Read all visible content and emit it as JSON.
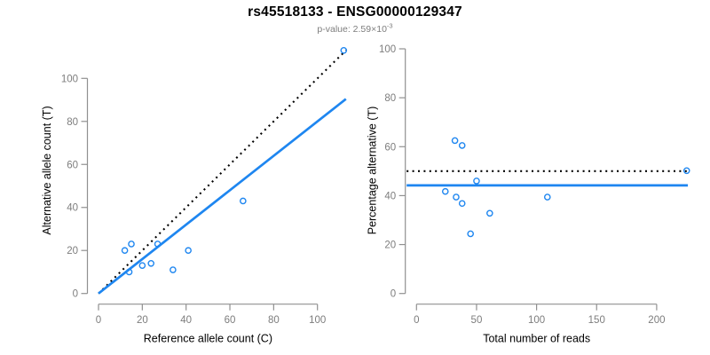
{
  "figure": {
    "title": "rs45518133 - ENSG00000129347",
    "pvalue_label": "p-value: ",
    "pvalue_base": "2.59×10",
    "pvalue_exponent": "-3"
  },
  "colors": {
    "accent_blue": "#1E86F0",
    "identity_black": "#000000",
    "axis_gray": "#909090",
    "tick_label_gray": "#7d7d7d"
  },
  "chart_data": [
    {
      "type": "scatter",
      "panel": "left",
      "xlabel": "Reference allele count (C)",
      "ylabel": "Alternative allele count (T)",
      "xticks": [
        0,
        20,
        40,
        60,
        80,
        100
      ],
      "yticks": [
        0,
        20,
        40,
        60,
        80,
        100
      ],
      "xlim": [
        0,
        113
      ],
      "ylim": [
        0,
        114
      ],
      "grid": false,
      "points": [
        [
          12,
          20
        ],
        [
          14,
          10
        ],
        [
          15,
          23
        ],
        [
          20,
          13
        ],
        [
          24,
          14
        ],
        [
          27,
          23
        ],
        [
          34,
          11
        ],
        [
          41,
          20
        ],
        [
          66,
          43
        ],
        [
          112,
          113
        ]
      ],
      "lines": [
        {
          "name": "identity-line",
          "style": "dotted",
          "color_key": "identity_black",
          "from": [
            0,
            0
          ],
          "to": [
            113,
            113
          ]
        },
        {
          "name": "fit-line",
          "style": "solid",
          "color_key": "accent_blue",
          "from": [
            0,
            0
          ],
          "to": [
            113,
            90.4
          ]
        }
      ]
    },
    {
      "type": "scatter",
      "panel": "right",
      "xlabel": "Total number of reads",
      "ylabel": "Percentage alternative (T)",
      "xticks": [
        0,
        50,
        100,
        150,
        200
      ],
      "yticks": [
        0,
        20,
        40,
        60,
        80,
        100
      ],
      "xlim": [
        0,
        226
      ],
      "ylim": [
        0,
        104
      ],
      "grid": false,
      "points": [
        [
          24,
          41.7
        ],
        [
          32,
          62.5
        ],
        [
          33,
          39.4
        ],
        [
          38,
          60.5
        ],
        [
          38,
          36.8
        ],
        [
          45,
          24.4
        ],
        [
          50,
          46.0
        ],
        [
          61,
          32.8
        ],
        [
          109,
          39.4
        ],
        [
          225,
          50.2
        ]
      ],
      "lines": [
        {
          "name": "expected-50pct-line",
          "style": "dotted",
          "color_key": "identity_black",
          "hline": 50
        },
        {
          "name": "fit-line",
          "style": "solid",
          "color_key": "accent_blue",
          "hline": 44.2
        }
      ]
    }
  ]
}
